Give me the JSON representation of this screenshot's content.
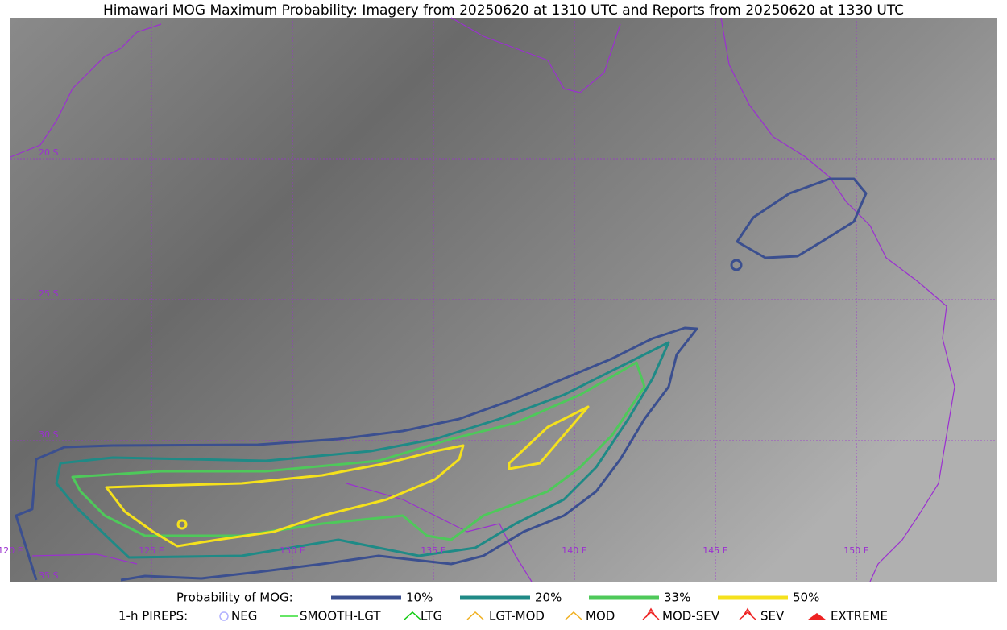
{
  "title": "Himawari MOG Maximum Probability: Imagery from 20250620 at 1310 UTC and Reports from 20250620 at 1330 UTC",
  "map": {
    "lat_labels": [
      "20 S",
      "25 S",
      "30 S",
      "35 S"
    ],
    "lon_labels": [
      "120 E",
      "125 E",
      "130 E",
      "135 E",
      "140 E",
      "145 E",
      "150 E"
    ]
  },
  "legend": {
    "probability": {
      "label": "Probability of MOG:",
      "items": [
        {
          "label": "10%",
          "color": "#3b4f8f"
        },
        {
          "label": "20%",
          "color": "#1f8a86"
        },
        {
          "label": "33%",
          "color": "#4ec95a"
        },
        {
          "label": "50%",
          "color": "#f5e11c"
        }
      ]
    },
    "pireps": {
      "label": "1-h PIREPS:",
      "items": [
        {
          "label": "NEG",
          "color": "#b0b0ff"
        },
        {
          "label": "SMOOTH-LGT",
          "color": "#33dd33"
        },
        {
          "label": "LTG",
          "color": "#11cc11"
        },
        {
          "label": "LGT-MOD",
          "color": "#f0b020"
        },
        {
          "label": "MOD",
          "color": "#f0b020"
        },
        {
          "label": "MOD-SEV",
          "color": "#ee2222"
        },
        {
          "label": "SEV",
          "color": "#ee2222"
        },
        {
          "label": "EXTREME",
          "color": "#ee2222"
        }
      ]
    }
  }
}
